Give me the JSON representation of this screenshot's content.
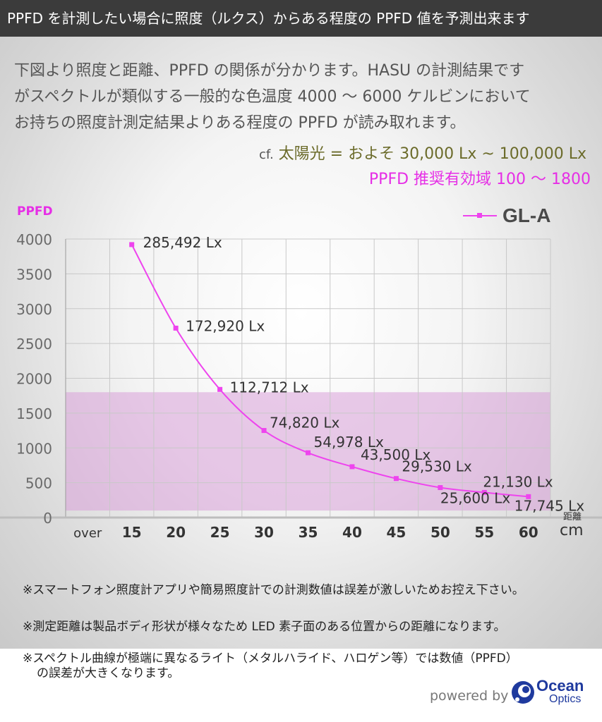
{
  "header": {
    "title": "PPFD を計測したい場合に照度（ルクス）からある程度の PPFD 値を予測出来ます"
  },
  "intro": {
    "lines": [
      "下図より照度と距離、PPFD の関係が分かります。HASU の計測結果です",
      "がスペクトルが類似する一般的な色温度 4000 ～ 6000 ケルビンにおいて",
      "お持ちの照度計測定結果よりある程度の PPFD が読み取れます。"
    ]
  },
  "reference": {
    "cf_prefix": "cf.",
    "sunlight": "太陽光 = およそ 30,000 Lx ~ 100,000 Lx",
    "ppfd_range": "PPFD 推奨有効域 100 ～ 1800"
  },
  "colors": {
    "series": "#ee44ee",
    "recommended_band": "#d9a0d9",
    "header_bg": "#3b3b3b",
    "accent_magenta": "#e62ee6",
    "sun_text": "#6b6b2a"
  },
  "chart_data": {
    "type": "line",
    "ylabel": "PPFD",
    "xlabel": "距離",
    "xunit": "cm",
    "categories": [
      "over",
      "15",
      "20",
      "25",
      "30",
      "35",
      "40",
      "45",
      "50",
      "55",
      "60"
    ],
    "ylim": [
      0,
      4000
    ],
    "yticks": [
      "4000",
      "3500",
      "3000",
      "2500",
      "2000",
      "1500",
      "1000",
      "500",
      "0"
    ],
    "grid": true,
    "legend_position": "top-right",
    "recommended_band": [
      100,
      1800
    ],
    "series": [
      {
        "name": "GL-A",
        "x": [
          "15",
          "20",
          "25",
          "30",
          "35",
          "40",
          "45",
          "50",
          "55",
          "60"
        ],
        "values": [
          3920,
          2720,
          1840,
          1250,
          930,
          730,
          560,
          430,
          360,
          300
        ],
        "labels": [
          "285,492 Lx",
          "172,920 Lx",
          "112,712 Lx",
          "74,820 Lx",
          "54,978 Lx",
          "43,500 Lx",
          "29,530 Lx",
          "25,600 Lx",
          "21,130 Lx",
          "17,745 Lx"
        ]
      }
    ]
  },
  "notes": [
    "※スマートフォン照度計アプリや簡易照度計での計測数値は誤差が激しいためお控え下さい。",
    "※測定距離は製品ボディ形状が様々なため LED 素子面のある位置からの距離になります。",
    "※スペクトル曲線が極端に異なるライト（メタルハライド、ハロゲン等）では数値（PPFD）",
    "の誤差が大きくなります。"
  ],
  "footer": {
    "powered_by": "powered by",
    "logo_line1": "Ocean",
    "logo_line2": "Optics"
  }
}
